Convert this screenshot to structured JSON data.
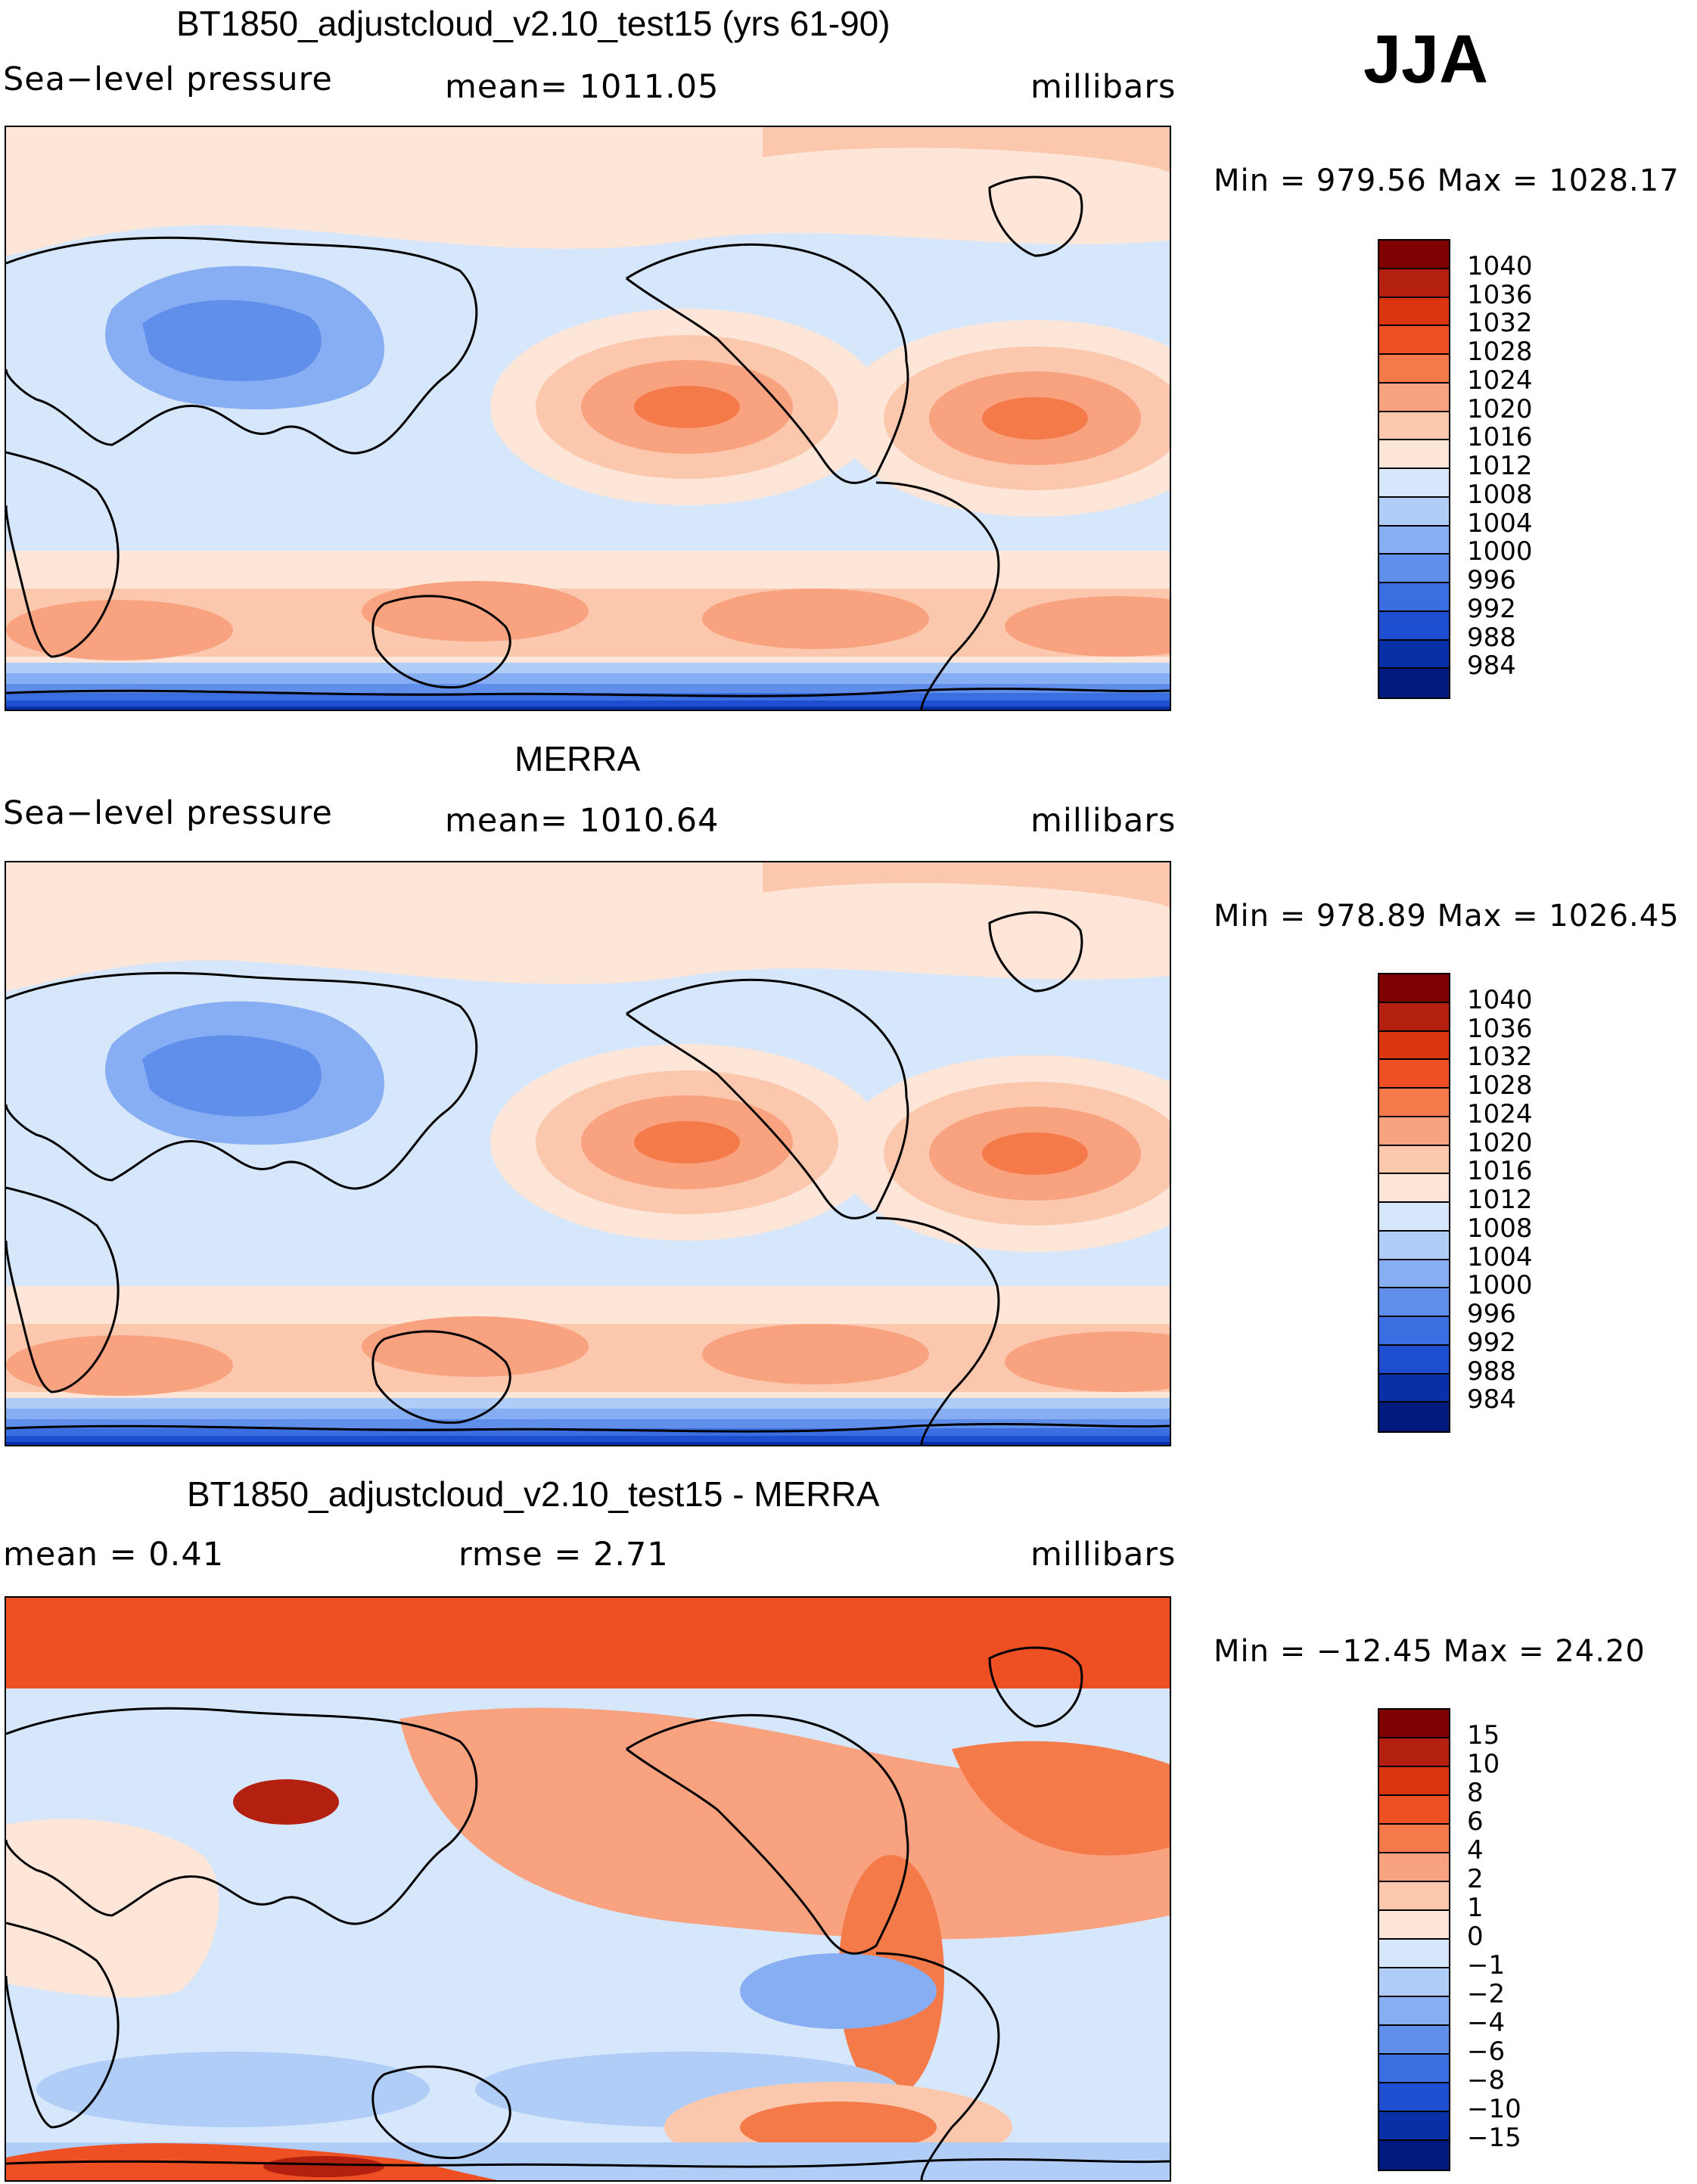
{
  "season": "JJA",
  "panels": [
    {
      "title": "BT1850_adjustcloud_v2.10_test15 (yrs 61-90)",
      "left": "Sea−level pressure",
      "center": "mean=  1011.05",
      "units": "millibars",
      "minmax": "Min  =  979.56  Max  =  1028.17",
      "levels": [
        "1040",
        "1036",
        "1032",
        "1028",
        "1024",
        "1020",
        "1016",
        "1012",
        "1008",
        "1004",
        "1000",
        "996",
        "992",
        "988",
        "984"
      ],
      "colors": [
        "#7f0000",
        "#b3200f",
        "#d9360f",
        "#ef5023",
        "#f57a4a",
        "#f9a280",
        "#fcc8ad",
        "#fde6d8",
        "#d6e6fb",
        "#b0cdf7",
        "#87adf2",
        "#5f8eeb",
        "#3b6ee0",
        "#1d4fd0",
        "#0a30a8",
        "#001a80"
      ],
      "map": {
        "type": "model"
      }
    },
    {
      "title": "MERRA",
      "left": "Sea−level pressure",
      "center": "mean=  1010.64",
      "units": "millibars",
      "minmax": "Min  =  978.89  Max  =  1026.45",
      "levels": [
        "1040",
        "1036",
        "1032",
        "1028",
        "1024",
        "1020",
        "1016",
        "1012",
        "1008",
        "1004",
        "1000",
        "996",
        "992",
        "988",
        "984"
      ],
      "colors": [
        "#7f0000",
        "#b3200f",
        "#d9360f",
        "#ef5023",
        "#f57a4a",
        "#f9a280",
        "#fcc8ad",
        "#fde6d8",
        "#d6e6fb",
        "#b0cdf7",
        "#87adf2",
        "#5f8eeb",
        "#3b6ee0",
        "#1d4fd0",
        "#0a30a8",
        "#001a80"
      ],
      "map": {
        "type": "obs"
      }
    },
    {
      "title": "BT1850_adjustcloud_v2.10_test15 - MERRA",
      "left": "mean  =     0.41",
      "center": "rmse  =     2.71",
      "units": "millibars",
      "minmax": "Min  =  −12.45  Max  =    24.20",
      "levels": [
        "15",
        "10",
        "8",
        "6",
        "4",
        "2",
        "1",
        "0",
        "−1",
        "−2",
        "−4",
        "−6",
        "−8",
        "−10",
        "−15"
      ],
      "colors": [
        "#7f0000",
        "#b3200f",
        "#d9360f",
        "#ef5023",
        "#f57a4a",
        "#f9a280",
        "#fcc8ad",
        "#fde6d8",
        "#d6e6fb",
        "#b0cdf7",
        "#87adf2",
        "#5f8eeb",
        "#3b6ee0",
        "#1d4fd0",
        "#0a30a8",
        "#001a80"
      ],
      "map": {
        "type": "diff"
      }
    }
  ]
}
